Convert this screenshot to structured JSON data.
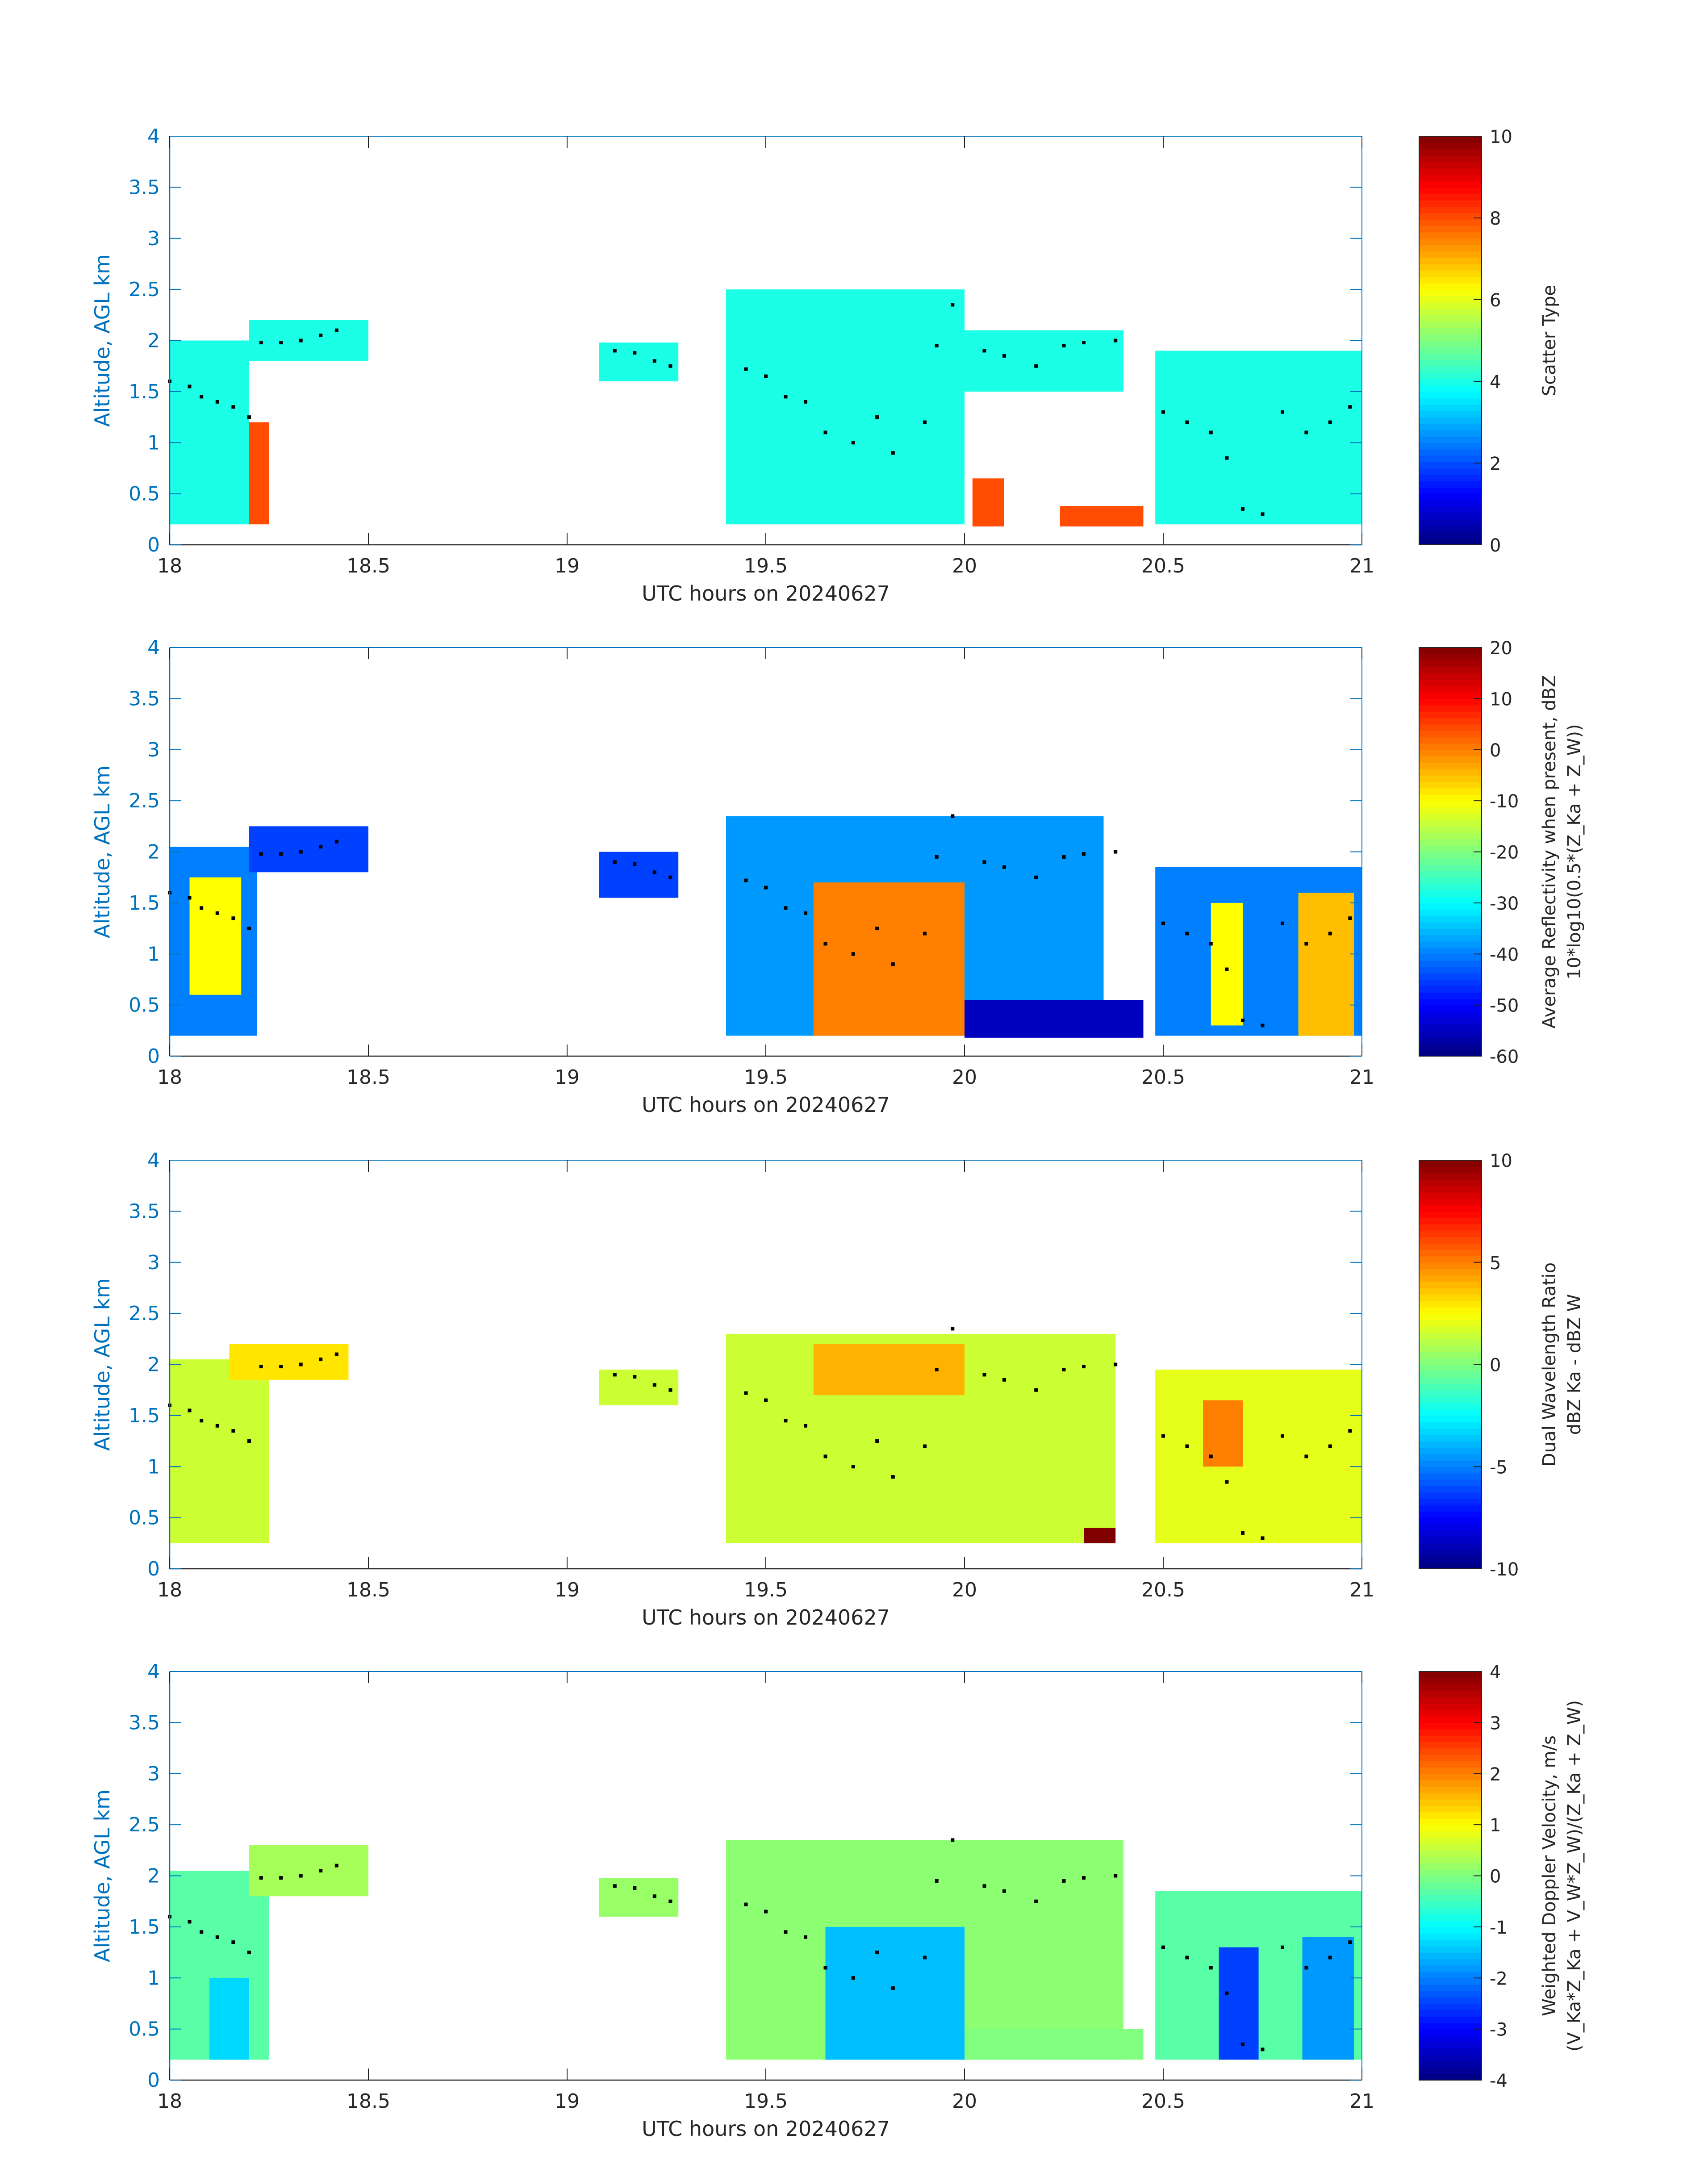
{
  "figure": {
    "common": {
      "type": "heatmap",
      "xlabel": "UTC hours on 20240627",
      "ylabel": "Altitude, AGL km",
      "xlim": [
        18,
        21
      ],
      "ylim": [
        0,
        4
      ],
      "xticks": [
        "18",
        "18.5",
        "19",
        "19.5",
        "20",
        "20.5",
        "21"
      ],
      "yticks": [
        "0",
        "0.5",
        "1",
        "1.5",
        "2",
        "2.5",
        "3",
        "3.5",
        "4"
      ],
      "colormap": "jet",
      "marker_note": "black dots"
    }
  },
  "chart_data": [
    {
      "type": "heatmap",
      "xlabel": "UTC hours on 20240627",
      "ylabel": "Altitude, AGL km",
      "xlim": [
        18,
        21
      ],
      "ylim": [
        0,
        4
      ],
      "colorbar": {
        "label_lines": [
          "Scatter Type"
        ],
        "range": [
          0,
          10
        ],
        "ticks": [
          "0",
          "2",
          "4",
          "6",
          "8",
          "10"
        ]
      },
      "fields": [
        {
          "x": [
            18.0,
            18.2
          ],
          "y": [
            0.2,
            2.0
          ],
          "value": 4
        },
        {
          "x": [
            18.2,
            18.5
          ],
          "y": [
            1.8,
            2.2
          ],
          "value": 4
        },
        {
          "x": [
            19.08,
            19.28
          ],
          "y": [
            1.6,
            1.98
          ],
          "value": 4
        },
        {
          "x": [
            19.4,
            20.0
          ],
          "y": [
            0.2,
            2.5
          ],
          "value": 4
        },
        {
          "x": [
            20.0,
            20.4
          ],
          "y": [
            1.5,
            2.1
          ],
          "value": 4
        },
        {
          "x": [
            20.48,
            21.0
          ],
          "y": [
            0.2,
            1.9
          ],
          "value": 4
        },
        {
          "x": [
            20.02,
            20.1
          ],
          "y": [
            0.18,
            0.65
          ],
          "value": 8
        },
        {
          "x": [
            20.24,
            20.45
          ],
          "y": [
            0.18,
            0.38
          ],
          "value": 8
        },
        {
          "x": [
            18.2,
            18.25
          ],
          "y": [
            0.2,
            1.2
          ],
          "value": 8
        }
      ]
    },
    {
      "type": "heatmap",
      "xlabel": "UTC hours on 20240627",
      "ylabel": "Altitude, AGL km",
      "xlim": [
        18,
        21
      ],
      "ylim": [
        0,
        4
      ],
      "colorbar": {
        "label_lines": [
          "Average Reflectivity when present, dBZ",
          "10*log10(0.5*(Z_Ka + Z_W))"
        ],
        "range": [
          -60,
          20
        ],
        "ticks": [
          "-60",
          "-50",
          "-40",
          "-30",
          "-20",
          "-10",
          "0",
          "10",
          "20"
        ]
      },
      "fields": [
        {
          "x": [
            18.0,
            18.22
          ],
          "y": [
            0.2,
            2.05
          ],
          "value": -40
        },
        {
          "x": [
            18.05,
            18.18
          ],
          "y": [
            0.6,
            1.75
          ],
          "value": -10
        },
        {
          "x": [
            18.2,
            18.5
          ],
          "y": [
            1.8,
            2.25
          ],
          "value": -45
        },
        {
          "x": [
            19.08,
            19.28
          ],
          "y": [
            1.55,
            2.0
          ],
          "value": -45
        },
        {
          "x": [
            19.4,
            20.35
          ],
          "y": [
            0.2,
            2.35
          ],
          "value": -38
        },
        {
          "x": [
            19.62,
            20.0
          ],
          "y": [
            0.2,
            1.7
          ],
          "value": 0
        },
        {
          "x": [
            20.0,
            20.45
          ],
          "y": [
            0.18,
            0.55
          ],
          "value": -55
        },
        {
          "x": [
            20.48,
            21.0
          ],
          "y": [
            0.2,
            1.85
          ],
          "value": -40
        },
        {
          "x": [
            20.62,
            20.7
          ],
          "y": [
            0.3,
            1.5
          ],
          "value": -10
        },
        {
          "x": [
            20.84,
            20.98
          ],
          "y": [
            0.2,
            1.6
          ],
          "value": -5
        }
      ]
    },
    {
      "type": "heatmap",
      "xlabel": "UTC hours on 20240627",
      "ylabel": "Altitude, AGL km",
      "xlim": [
        18,
        21
      ],
      "ylim": [
        0,
        4
      ],
      "colorbar": {
        "label_lines": [
          "Dual Wavelength Ratio",
          "dBZ Ka - dBZ W"
        ],
        "range": [
          -10,
          10
        ],
        "ticks": [
          "-10",
          "-5",
          "0",
          "5",
          "10"
        ]
      },
      "fields": [
        {
          "x": [
            18.0,
            18.25
          ],
          "y": [
            0.25,
            2.05
          ],
          "value": 1.5
        },
        {
          "x": [
            18.15,
            18.45
          ],
          "y": [
            1.85,
            2.2
          ],
          "value": 3
        },
        {
          "x": [
            19.08,
            19.28
          ],
          "y": [
            1.6,
            1.95
          ],
          "value": 1.5
        },
        {
          "x": [
            19.4,
            20.38
          ],
          "y": [
            0.25,
            2.3
          ],
          "value": 1.5
        },
        {
          "x": [
            19.62,
            20.0
          ],
          "y": [
            1.7,
            2.2
          ],
          "value": 4
        },
        {
          "x": [
            20.48,
            21.0
          ],
          "y": [
            0.25,
            1.95
          ],
          "value": 2
        },
        {
          "x": [
            20.6,
            20.7
          ],
          "y": [
            1.0,
            1.65
          ],
          "value": 5
        },
        {
          "x": [
            20.3,
            20.38
          ],
          "y": [
            0.25,
            0.4
          ],
          "value": 10
        }
      ]
    },
    {
      "type": "heatmap",
      "xlabel": "UTC hours on 20240627",
      "ylabel": "Altitude, AGL km",
      "xlim": [
        18,
        21
      ],
      "ylim": [
        0,
        4
      ],
      "colorbar": {
        "label_lines": [
          "Weighted Doppler Velocity, m/s",
          "(V_Ka*Z_Ka + V_W*Z_W)/(Z_Ka + Z_W)"
        ],
        "range": [
          -4,
          4
        ],
        "ticks": [
          "-4",
          "-3",
          "-2",
          "-1",
          "0",
          "1",
          "2",
          "3",
          "4"
        ]
      },
      "fields": [
        {
          "x": [
            18.0,
            18.25
          ],
          "y": [
            0.2,
            2.05
          ],
          "value": -0.3
        },
        {
          "x": [
            18.1,
            18.2
          ],
          "y": [
            0.2,
            1.0
          ],
          "value": -1.3
        },
        {
          "x": [
            18.2,
            18.5
          ],
          "y": [
            1.8,
            2.3
          ],
          "value": 0.3
        },
        {
          "x": [
            19.08,
            19.28
          ],
          "y": [
            1.6,
            1.98
          ],
          "value": 0.2
        },
        {
          "x": [
            19.4,
            20.4
          ],
          "y": [
            0.2,
            2.35
          ],
          "value": 0.1
        },
        {
          "x": [
            19.65,
            20.0
          ],
          "y": [
            0.2,
            1.5
          ],
          "value": -1.5
        },
        {
          "x": [
            20.0,
            20.45
          ],
          "y": [
            0.2,
            0.5
          ],
          "value": 0.0
        },
        {
          "x": [
            20.48,
            21.0
          ],
          "y": [
            0.2,
            1.85
          ],
          "value": -0.3
        },
        {
          "x": [
            20.64,
            20.74
          ],
          "y": [
            0.2,
            1.3
          ],
          "value": -2.5
        },
        {
          "x": [
            20.85,
            20.98
          ],
          "y": [
            0.2,
            1.4
          ],
          "value": -1.8
        }
      ]
    }
  ],
  "markers": [
    [
      18.0,
      1.6
    ],
    [
      18.05,
      1.55
    ],
    [
      18.08,
      1.45
    ],
    [
      18.12,
      1.4
    ],
    [
      18.16,
      1.35
    ],
    [
      18.2,
      1.25
    ],
    [
      18.23,
      1.98
    ],
    [
      18.28,
      1.98
    ],
    [
      18.33,
      2.0
    ],
    [
      18.38,
      2.05
    ],
    [
      18.42,
      2.1
    ],
    [
      19.12,
      1.9
    ],
    [
      19.17,
      1.88
    ],
    [
      19.22,
      1.8
    ],
    [
      19.26,
      1.75
    ],
    [
      19.45,
      1.72
    ],
    [
      19.5,
      1.65
    ],
    [
      19.55,
      1.45
    ],
    [
      19.6,
      1.4
    ],
    [
      19.65,
      1.1
    ],
    [
      19.72,
      1.0
    ],
    [
      19.78,
      1.25
    ],
    [
      19.82,
      0.9
    ],
    [
      19.9,
      1.2
    ],
    [
      19.93,
      1.95
    ],
    [
      19.97,
      2.35
    ],
    [
      20.05,
      1.9
    ],
    [
      20.1,
      1.85
    ],
    [
      20.18,
      1.75
    ],
    [
      20.25,
      1.95
    ],
    [
      20.3,
      1.98
    ],
    [
      20.38,
      2.0
    ],
    [
      20.5,
      1.3
    ],
    [
      20.56,
      1.2
    ],
    [
      20.62,
      1.1
    ],
    [
      20.66,
      0.85
    ],
    [
      20.7,
      0.35
    ],
    [
      20.75,
      0.3
    ],
    [
      20.8,
      1.3
    ],
    [
      20.86,
      1.1
    ],
    [
      20.92,
      1.2
    ],
    [
      20.97,
      1.35
    ]
  ]
}
